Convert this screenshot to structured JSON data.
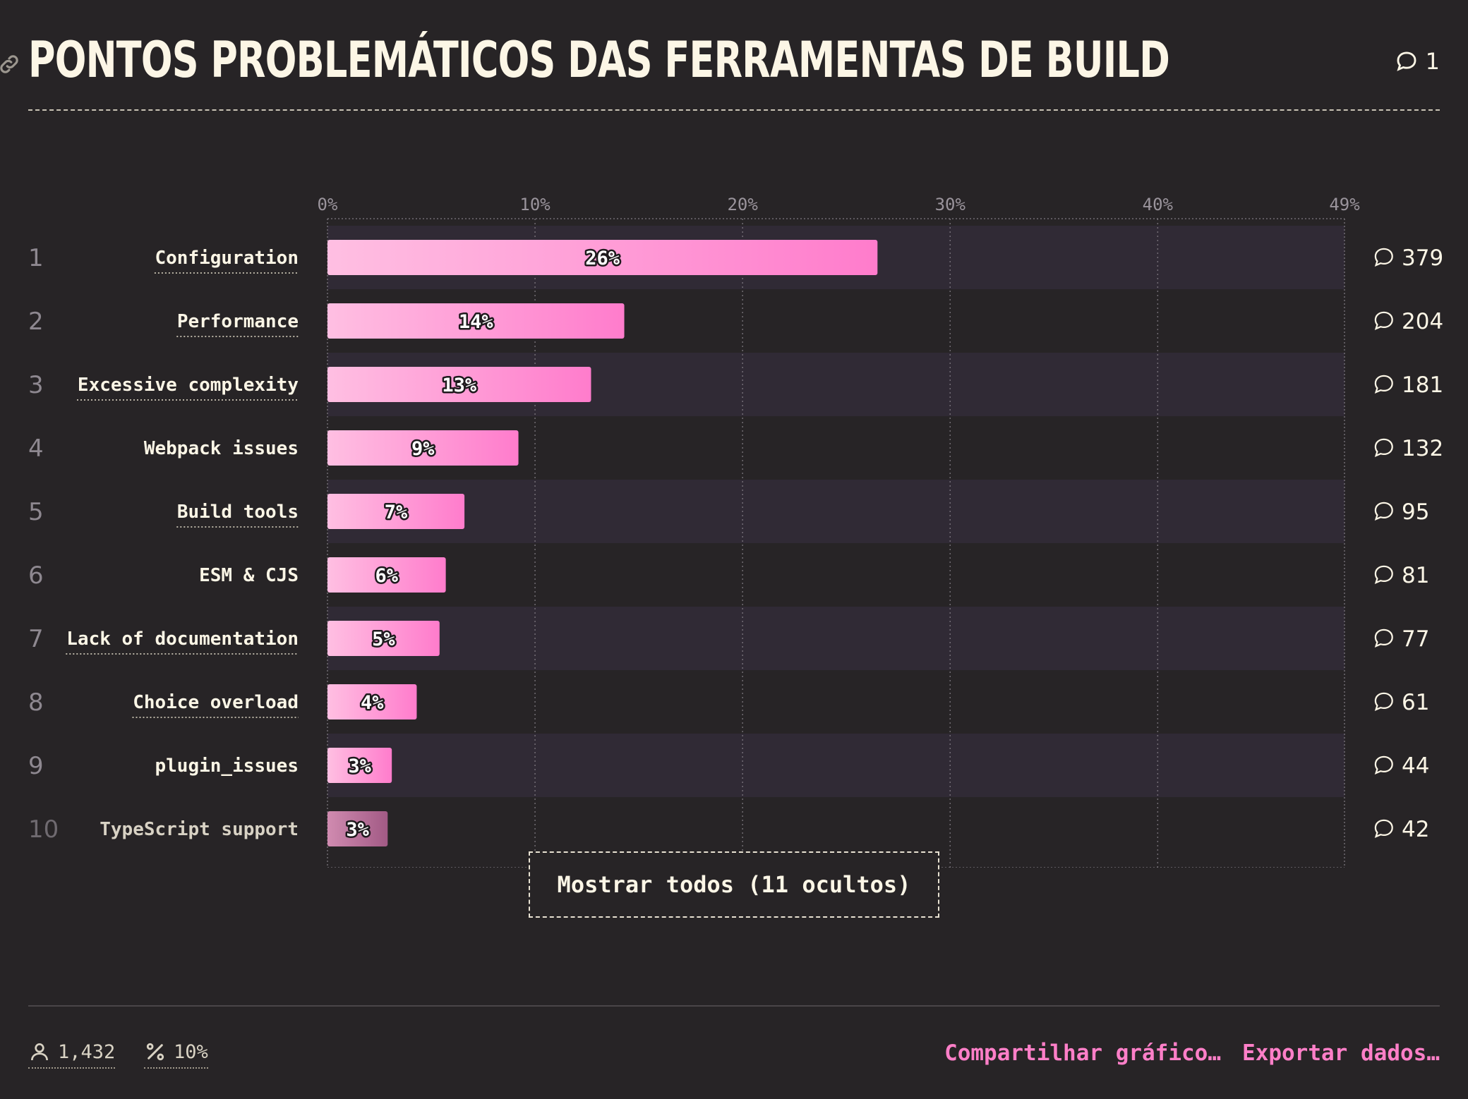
{
  "header": {
    "title": "PONTOS PROBLEMÁTICOS DAS FERRAMENTAS DE BUILD",
    "comment_count": "1"
  },
  "colors": {
    "bar_start": "#ffbfe2",
    "bar_end": "#ff7ccc",
    "bar_muted_start": "#d08bb0",
    "bar_muted_end": "#a25a85",
    "row_band": "#302a35",
    "background": "#272426",
    "accent": "#ff7fc8"
  },
  "chart_data": {
    "type": "bar",
    "orientation": "horizontal",
    "xlim": [
      0,
      49
    ],
    "ticks": [
      "0%",
      "10%",
      "20%",
      "30%",
      "40%",
      "49%"
    ],
    "grid": true,
    "categories": [
      "Configuration",
      "Performance",
      "Excessive complexity",
      "Webpack issues",
      "Build tools",
      "ESM & CJS",
      "Lack of documentation",
      "Choice overload",
      "plugin_issues",
      "TypeScript support"
    ],
    "ranks": [
      "1",
      "2",
      "3",
      "4",
      "5",
      "6",
      "7",
      "8",
      "9",
      "10"
    ],
    "values": [
      26.5,
      14.3,
      12.7,
      9.2,
      6.6,
      5.7,
      5.4,
      4.3,
      3.1,
      2.9
    ],
    "value_labels": [
      "26%",
      "14%",
      "13%",
      "9%",
      "7%",
      "6%",
      "5%",
      "4%",
      "3%",
      "3%"
    ],
    "comments": [
      "379",
      "204",
      "181",
      "132",
      "95",
      "81",
      "77",
      "61",
      "44",
      "42"
    ],
    "underlined": [
      true,
      true,
      true,
      false,
      true,
      false,
      true,
      true,
      false,
      false
    ],
    "muted": [
      false,
      false,
      false,
      false,
      false,
      false,
      false,
      false,
      false,
      true
    ]
  },
  "show_all_label": "Mostrar todos (11 ocultos)",
  "footer": {
    "respondents": "1,432",
    "percent": "10%",
    "share_label": "Compartilhar gráfico…",
    "export_label": "Exportar dados…"
  }
}
